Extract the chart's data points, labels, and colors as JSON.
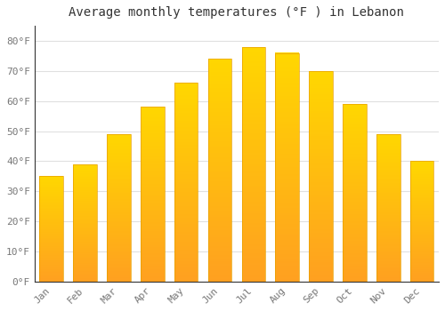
{
  "title": "Average monthly temperatures (°F ) in Lebanon",
  "months": [
    "Jan",
    "Feb",
    "Mar",
    "Apr",
    "May",
    "Jun",
    "Jul",
    "Aug",
    "Sep",
    "Oct",
    "Nov",
    "Dec"
  ],
  "values": [
    35,
    39,
    49,
    58,
    66,
    74,
    78,
    76,
    70,
    59,
    49,
    40
  ],
  "bar_color_top": "#FFD700",
  "bar_color_bottom": "#FFA020",
  "bar_edge_color": "#E8A000",
  "ylim": [
    0,
    85
  ],
  "yticks": [
    0,
    10,
    20,
    30,
    40,
    50,
    60,
    70,
    80
  ],
  "ytick_labels": [
    "0°F",
    "10°F",
    "20°F",
    "30°F",
    "40°F",
    "50°F",
    "60°F",
    "70°F",
    "80°F"
  ],
  "background_color": "#ffffff",
  "grid_color": "#e0e0e0",
  "title_fontsize": 10,
  "tick_fontsize": 8,
  "bar_width": 0.7
}
